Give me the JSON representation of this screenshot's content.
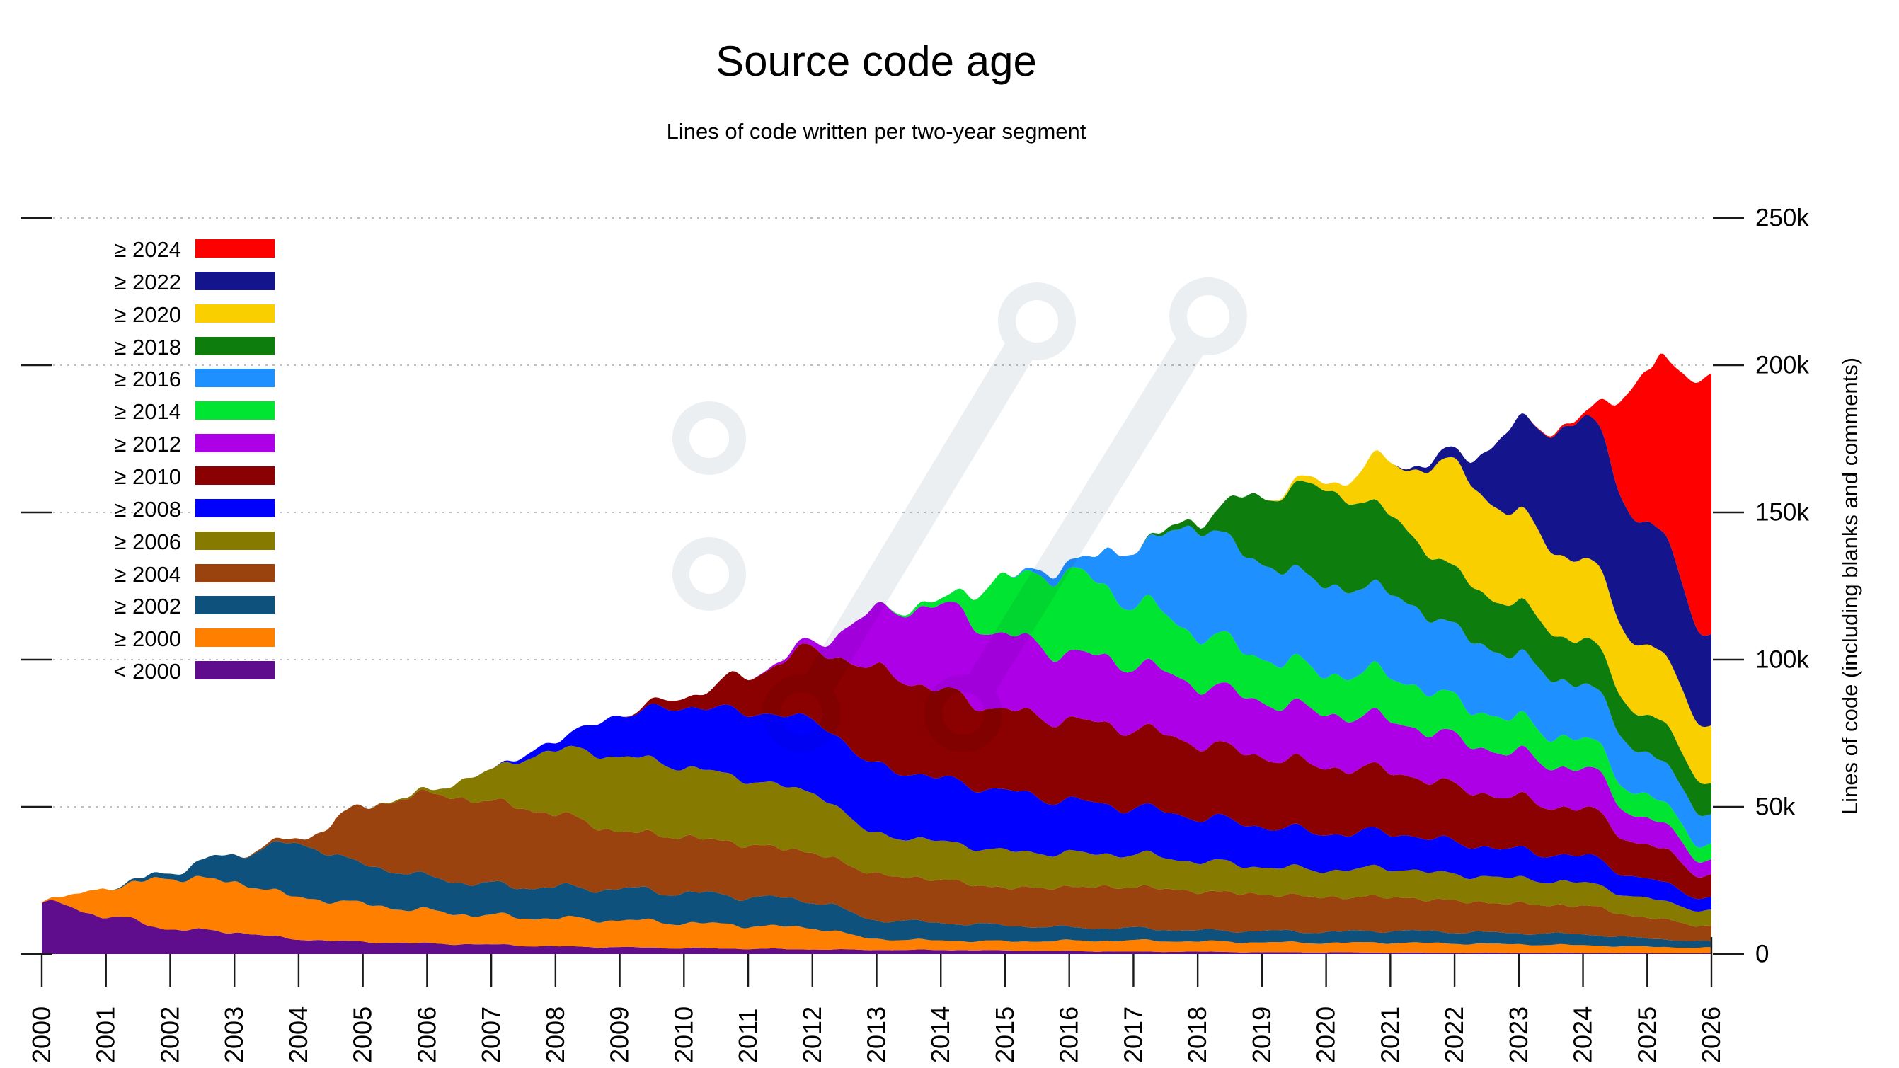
{
  "title": "Source code age",
  "subtitle": "Lines of code written per two-year segment",
  "y_axis": {
    "label": "Lines of code (including blanks and comments)",
    "ticks": [
      "0",
      "50k",
      "100k",
      "150k",
      "200k",
      "250k"
    ],
    "tick_values_k": [
      0,
      50,
      100,
      150,
      200,
      250
    ],
    "side": "right"
  },
  "x_axis": {
    "years": [
      2000,
      2001,
      2002,
      2003,
      2004,
      2005,
      2006,
      2007,
      2008,
      2009,
      2010,
      2011,
      2012,
      2013,
      2014,
      2015,
      2016,
      2017,
      2018,
      2019,
      2020,
      2021,
      2022,
      2023,
      2024,
      2025,
      2026
    ]
  },
  "watermark_icon": "git-branch-slashes-logo",
  "chart_data": {
    "type": "area",
    "stacked": true,
    "title": "Source code age",
    "subtitle": "Lines of code written per two-year segment",
    "xlabel": "",
    "ylabel": "Lines of code (including blanks and comments)",
    "xlim": [
      2000,
      2026
    ],
    "ylim_k": [
      0,
      250
    ],
    "grid": "dotted horizontal at 50k steps",
    "legend_position": "top-left",
    "units": "thousands of lines of code",
    "x": [
      2000,
      2001,
      2002,
      2003,
      2004,
      2005,
      2006,
      2007,
      2008,
      2009,
      2010,
      2011,
      2012,
      2013,
      2014,
      2015,
      2016,
      2017,
      2018,
      2019,
      2020,
      2021,
      2022,
      2023,
      2024,
      2025,
      2026
    ],
    "series": [
      {
        "name": "< 2000",
        "color": "#600d8d",
        "values": [
          17.8,
          13.0,
          8.6,
          7.4,
          5.0,
          4.1,
          3.6,
          3.2,
          2.6,
          2.3,
          2.0,
          1.8,
          1.6,
          1.4,
          1.4,
          1.2,
          1.0,
          0.8,
          0.8,
          0.6,
          0.6,
          0.5,
          0.4,
          0.4,
          0.4,
          0.3,
          0.3
        ]
      },
      {
        "name": "≥ 2000",
        "color": "#ff7f00",
        "values": [
          0.3,
          8.8,
          17.5,
          17.1,
          14.3,
          12.9,
          11.0,
          9.8,
          9.5,
          9.2,
          8.6,
          7.9,
          7.3,
          3.7,
          3.2,
          3.1,
          3.5,
          3.8,
          3.5,
          3.4,
          3.2,
          3.4,
          3.2,
          2.9,
          2.6,
          2.2,
          1.8
        ]
      },
      {
        "name": "≥ 2002",
        "color": "#0e517c",
        "values": [
          0,
          0,
          2.0,
          9.6,
          18.3,
          13.5,
          11.5,
          10.4,
          10.5,
          10.6,
          10.2,
          9.8,
          9.2,
          6.5,
          6.0,
          5.4,
          4.5,
          4.1,
          3.7,
          3.8,
          3.7,
          4.0,
          3.9,
          3.8,
          3.7,
          2.8,
          2.0
        ]
      },
      {
        "name": "≥ 2004",
        "color": "#9a430f",
        "values": [
          0,
          0,
          0,
          0,
          1.6,
          19.5,
          28.3,
          28.3,
          25.0,
          19.5,
          19.0,
          17.7,
          16.4,
          15.5,
          14.5,
          12.7,
          13.7,
          14.1,
          13.3,
          12.5,
          11.8,
          11.4,
          10.5,
          9.9,
          9.6,
          7.0,
          5.2
        ]
      },
      {
        "name": "≥ 2006",
        "color": "#867b00",
        "values": [
          0,
          0,
          0,
          0,
          0,
          0,
          0.8,
          10.8,
          22.0,
          25.7,
          23.9,
          22.1,
          20.4,
          13.6,
          13.1,
          12.5,
          11.5,
          11.1,
          10.3,
          9.4,
          9.2,
          9.9,
          9.0,
          8.6,
          7.8,
          6.4,
          5.2
        ]
      },
      {
        "name": "≥ 2008",
        "color": "#0000ff",
        "values": [
          0,
          0,
          0,
          0,
          0,
          0,
          0,
          0,
          3.0,
          14.1,
          20.4,
          23.0,
          24.7,
          23.2,
          21.3,
          20.3,
          17.8,
          15.9,
          15.0,
          13.8,
          12.5,
          12.1,
          10.9,
          9.5,
          9.0,
          6.5,
          4.3
        ]
      },
      {
        "name": "≥ 2010",
        "color": "#8b0000",
        "values": [
          0,
          0,
          0,
          0,
          0,
          0,
          0,
          0,
          0,
          0,
          3.5,
          12.4,
          24.0,
          32.6,
          29.8,
          27.4,
          27.3,
          26.9,
          25.1,
          23.8,
          22.6,
          20.9,
          18.9,
          17.4,
          15.9,
          11.5,
          7.7
        ]
      },
      {
        "name": "≥ 2012",
        "color": "#ae00e6",
        "values": [
          0,
          0,
          0,
          0,
          0,
          0,
          0,
          0,
          0,
          0,
          0,
          0,
          1.8,
          19.7,
          28.9,
          25.5,
          22.8,
          22.0,
          20.1,
          18.8,
          18.2,
          17.4,
          16.3,
          14.9,
          13.5,
          9.0,
          5.2
        ]
      },
      {
        "name": "≥ 2014",
        "color": "#00e432",
        "values": [
          0,
          0,
          0,
          0,
          0,
          0,
          0,
          0,
          0,
          0,
          0,
          0,
          0,
          0,
          1.8,
          19.4,
          27.5,
          21.3,
          17.5,
          15.1,
          13.8,
          15.2,
          12.8,
          11.4,
          9.9,
          7.5,
          5.2
        ]
      },
      {
        "name": "≥ 2016",
        "color": "#1e90ff",
        "values": [
          0,
          0,
          0,
          0,
          0,
          0,
          0,
          0,
          0,
          0,
          0,
          0,
          0,
          0,
          0,
          0,
          3.0,
          18.2,
          36.4,
          32.0,
          30.1,
          28.1,
          24.2,
          21.3,
          18.5,
          14.5,
          10.3
        ]
      },
      {
        "name": "≥ 2018",
        "color": "#0d7d0d",
        "values": [
          0,
          0,
          0,
          0,
          0,
          0,
          0,
          0,
          0,
          0,
          0,
          0,
          0,
          0,
          0,
          0,
          0,
          0,
          2.5,
          23.2,
          32.6,
          26.3,
          19.1,
          17.1,
          14.9,
          13.0,
          11.2
        ]
      },
      {
        "name": "≥ 2020",
        "color": "#f9cf00",
        "values": [
          0,
          0,
          0,
          0,
          0,
          0,
          0,
          0,
          0,
          0,
          0,
          0,
          0,
          0,
          0,
          0,
          0,
          0,
          0,
          0,
          2.5,
          17.8,
          35.5,
          30.5,
          27.0,
          23.5,
          19.9
        ]
      },
      {
        "name": "≥ 2022",
        "color": "#14148c",
        "values": [
          0,
          0,
          0,
          0,
          0,
          0,
          0,
          0,
          0,
          0,
          0,
          0,
          0,
          0,
          0,
          0,
          0,
          0,
          0,
          0,
          0,
          0,
          3.5,
          30.5,
          48.0,
          42.0,
          31.0
        ]
      },
      {
        "name": "≥ 2024",
        "color": "#ff0000",
        "values": [
          0,
          0,
          0,
          0,
          0,
          0,
          0,
          0,
          0,
          0,
          0,
          0,
          0,
          0,
          0,
          0,
          0,
          0,
          0,
          0,
          0,
          0,
          0,
          0,
          1.0,
          51.0,
          88.5
        ]
      }
    ]
  }
}
